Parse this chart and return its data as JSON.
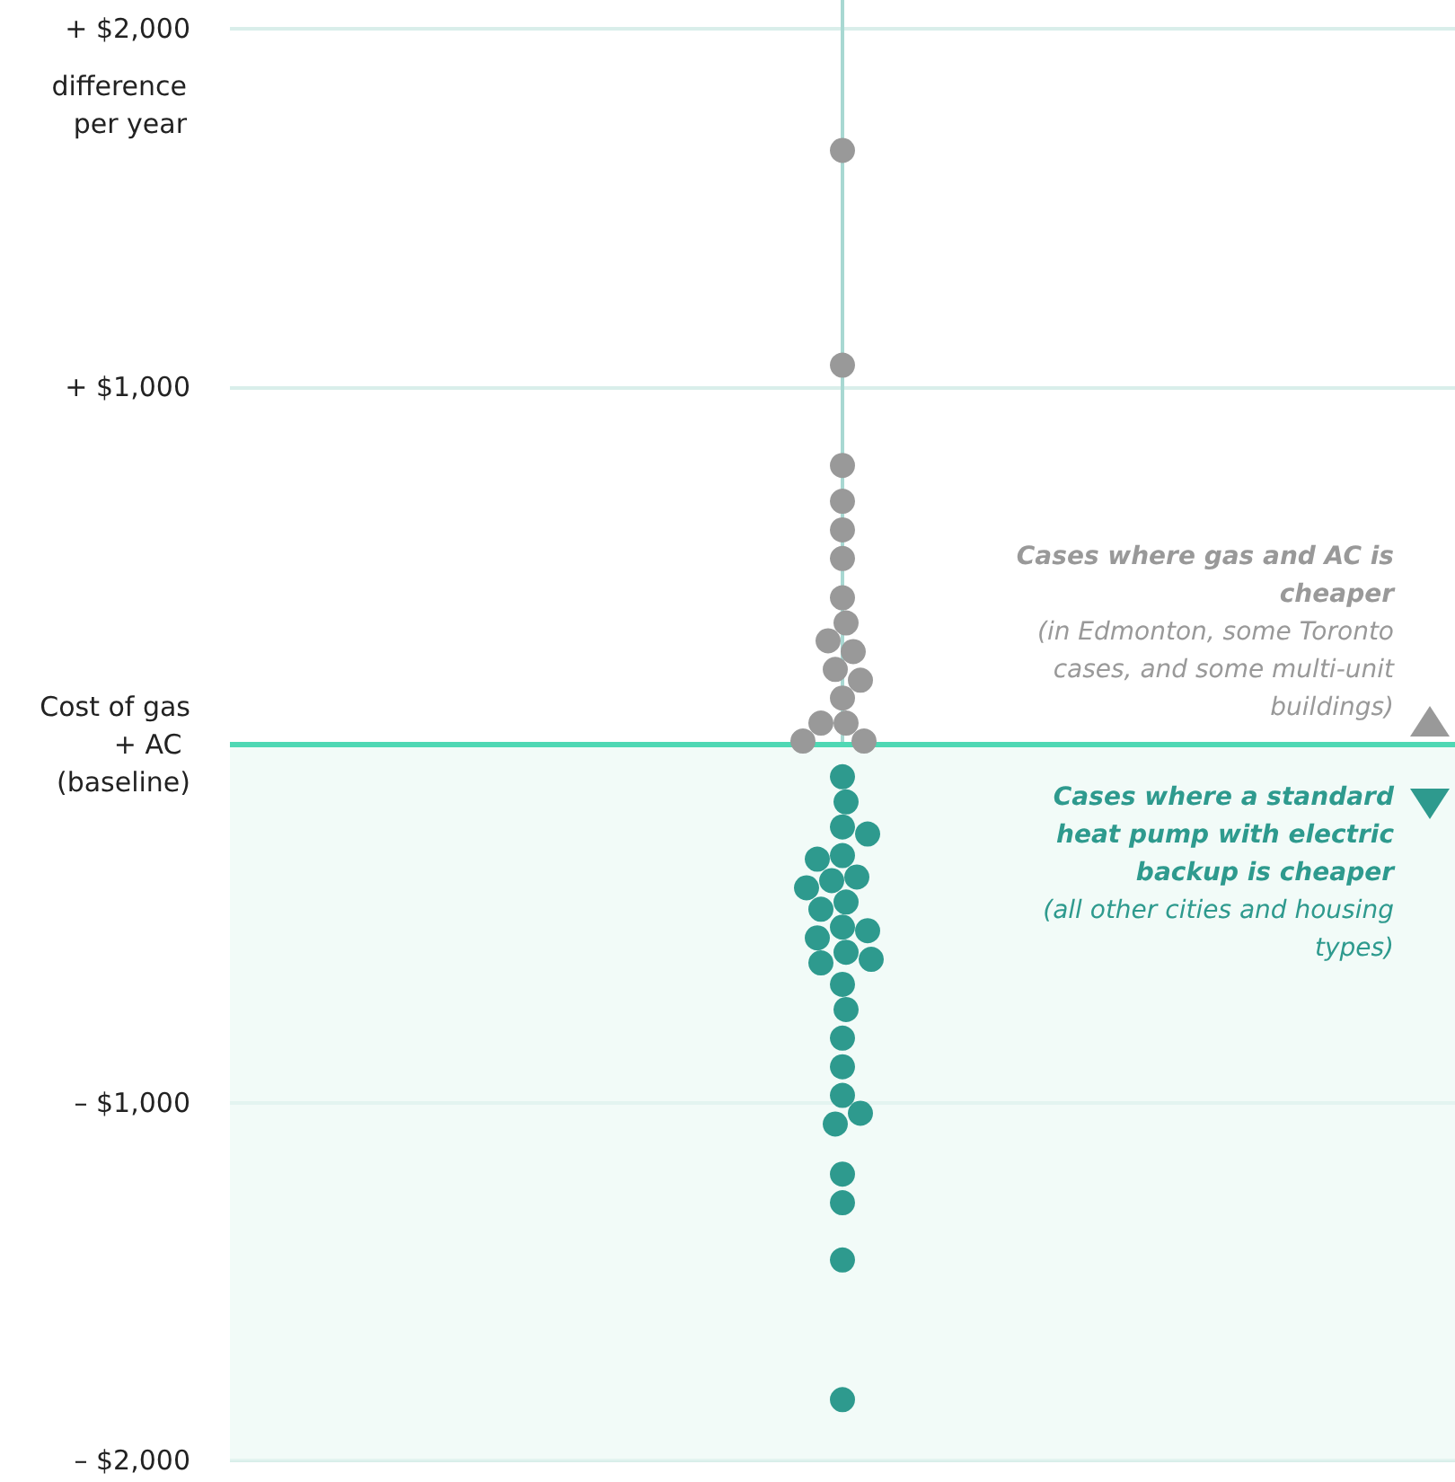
{
  "chart_data": {
    "type": "scatter",
    "categories": [
      null
    ],
    "ylabel": "difference per year",
    "ylim": [
      -2000,
      2000
    ],
    "yticks": [
      {
        "value": -2000,
        "label": "– $2,000"
      },
      {
        "value": -1000,
        "label": "– $1,000"
      },
      {
        "value": 0,
        "label": "Cost of gas + AC (baseline)"
      },
      {
        "value": 1000,
        "label": "+ $1,000"
      },
      {
        "value": 2000,
        "label": "+ $2,000"
      }
    ],
    "series": [
      {
        "color": "#999999",
        "x": [
          null,
          null,
          null,
          null,
          null,
          null,
          null,
          null,
          null,
          null,
          null,
          null,
          null,
          null,
          null,
          null,
          null
        ],
        "values": [
          1660,
          1060,
          780,
          680,
          600,
          520,
          410,
          340,
          290,
          260,
          210,
          180,
          130,
          60,
          60,
          10,
          10
        ]
      },
      {
        "color": "#2e9a8e",
        "x": [
          null,
          null,
          null,
          null,
          null,
          null,
          null,
          null,
          null,
          null,
          null,
          null,
          null,
          null,
          null,
          null,
          null,
          null,
          null,
          null,
          null,
          null,
          null,
          null,
          null,
          null,
          null,
          null
        ],
        "values": [
          -90,
          -160,
          -230,
          -250,
          -310,
          -320,
          -370,
          -380,
          -400,
          -440,
          -460,
          -510,
          -520,
          -540,
          -580,
          -600,
          -610,
          -670,
          -740,
          -820,
          -900,
          -980,
          -1030,
          -1060,
          -1200,
          -1280,
          -1440,
          -1830
        ]
      }
    ],
    "ref_lines": [
      {
        "axis": "y",
        "value": 0,
        "color": "#4fd8b4"
      }
    ],
    "bands": [
      {
        "axis": "y",
        "from": -2000,
        "to": 0,
        "color": "#eaf8f3"
      }
    ],
    "annotations": [
      "Cases where gas and AC is cheaper",
      "(in Edmonton, some Toronto cases, and some multi-unit buildings)",
      "Cases where a standard heat pump with electric backup is cheaper",
      "(all other cities and housing types)"
    ],
    "grid": "y",
    "marker": "circle"
  }
}
